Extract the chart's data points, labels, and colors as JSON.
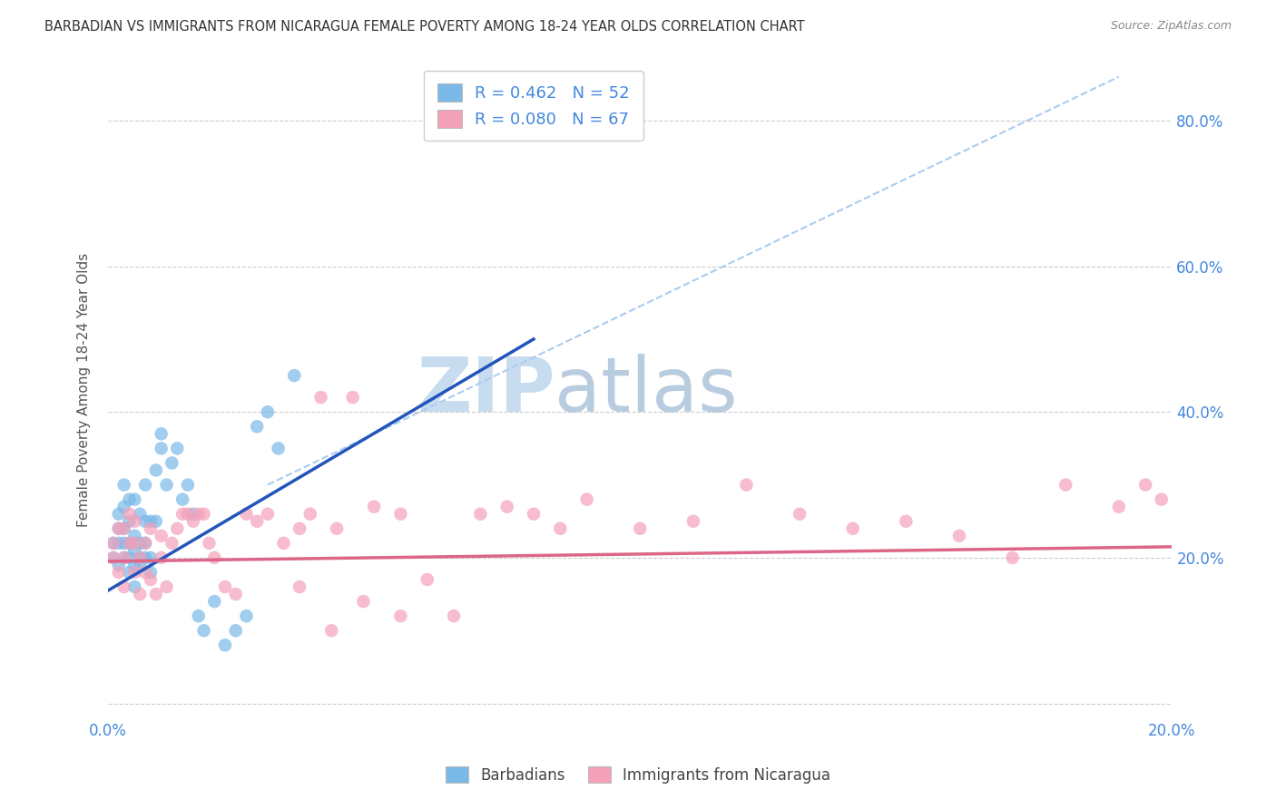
{
  "title": "BARBADIAN VS IMMIGRANTS FROM NICARAGUA FEMALE POVERTY AMONG 18-24 YEAR OLDS CORRELATION CHART",
  "source": "Source: ZipAtlas.com",
  "ylabel": "Female Poverty Among 18-24 Year Olds",
  "xlim": [
    0.0,
    0.2
  ],
  "ylim": [
    -0.02,
    0.88
  ],
  "legend1_R": "0.462",
  "legend1_N": "52",
  "legend2_R": "0.080",
  "legend2_N": "67",
  "color_barbadian": "#7ab8e8",
  "color_nicaragua": "#f4a0b8",
  "color_blue_line": "#2255bb",
  "color_pink_line": "#dd6688",
  "color_dashed_line": "#aaccee",
  "watermark_zip": "ZIP",
  "watermark_atlas": "atlas",
  "watermark_color_zip": "#c8dcf0",
  "watermark_color_atlas": "#b8cce0",
  "blue_line_x0": 0.0,
  "blue_line_y0": 0.155,
  "blue_line_x1": 0.08,
  "blue_line_y1": 0.5,
  "pink_line_x0": 0.0,
  "pink_line_y0": 0.195,
  "pink_line_x1": 0.2,
  "pink_line_y1": 0.215,
  "dash_line_x0": 0.03,
  "dash_line_y0": 0.3,
  "dash_line_x1": 0.19,
  "dash_line_y1": 0.86,
  "barbadian_x": [
    0.001,
    0.001,
    0.002,
    0.002,
    0.002,
    0.002,
    0.003,
    0.003,
    0.003,
    0.003,
    0.003,
    0.004,
    0.004,
    0.004,
    0.004,
    0.004,
    0.005,
    0.005,
    0.005,
    0.005,
    0.005,
    0.006,
    0.006,
    0.006,
    0.006,
    0.007,
    0.007,
    0.007,
    0.007,
    0.008,
    0.008,
    0.008,
    0.009,
    0.009,
    0.01,
    0.01,
    0.011,
    0.012,
    0.013,
    0.014,
    0.015,
    0.016,
    0.017,
    0.018,
    0.02,
    0.022,
    0.024,
    0.026,
    0.028,
    0.03,
    0.032,
    0.035
  ],
  "barbadian_y": [
    0.2,
    0.22,
    0.19,
    0.22,
    0.24,
    0.26,
    0.2,
    0.22,
    0.24,
    0.27,
    0.3,
    0.18,
    0.2,
    0.22,
    0.25,
    0.28,
    0.16,
    0.19,
    0.21,
    0.23,
    0.28,
    0.19,
    0.2,
    0.22,
    0.26,
    0.2,
    0.22,
    0.25,
    0.3,
    0.18,
    0.2,
    0.25,
    0.25,
    0.32,
    0.35,
    0.37,
    0.3,
    0.33,
    0.35,
    0.28,
    0.3,
    0.26,
    0.12,
    0.1,
    0.14,
    0.08,
    0.1,
    0.12,
    0.38,
    0.4,
    0.35,
    0.45
  ],
  "nicaragua_x": [
    0.001,
    0.001,
    0.002,
    0.002,
    0.003,
    0.003,
    0.003,
    0.004,
    0.004,
    0.005,
    0.005,
    0.005,
    0.006,
    0.006,
    0.007,
    0.007,
    0.008,
    0.008,
    0.009,
    0.01,
    0.01,
    0.011,
    0.012,
    0.013,
    0.014,
    0.015,
    0.016,
    0.017,
    0.018,
    0.019,
    0.02,
    0.022,
    0.024,
    0.026,
    0.028,
    0.03,
    0.033,
    0.036,
    0.038,
    0.04,
    0.043,
    0.046,
    0.05,
    0.055,
    0.06,
    0.065,
    0.07,
    0.075,
    0.08,
    0.085,
    0.09,
    0.1,
    0.11,
    0.12,
    0.13,
    0.14,
    0.15,
    0.16,
    0.17,
    0.18,
    0.19,
    0.195,
    0.198,
    0.036,
    0.042,
    0.048,
    0.055
  ],
  "nicaragua_y": [
    0.2,
    0.22,
    0.18,
    0.24,
    0.16,
    0.2,
    0.24,
    0.22,
    0.26,
    0.18,
    0.22,
    0.25,
    0.15,
    0.2,
    0.18,
    0.22,
    0.17,
    0.24,
    0.15,
    0.2,
    0.23,
    0.16,
    0.22,
    0.24,
    0.26,
    0.26,
    0.25,
    0.26,
    0.26,
    0.22,
    0.2,
    0.16,
    0.15,
    0.26,
    0.25,
    0.26,
    0.22,
    0.24,
    0.26,
    0.42,
    0.24,
    0.42,
    0.27,
    0.26,
    0.17,
    0.12,
    0.26,
    0.27,
    0.26,
    0.24,
    0.28,
    0.24,
    0.25,
    0.3,
    0.26,
    0.24,
    0.25,
    0.23,
    0.2,
    0.3,
    0.27,
    0.3,
    0.28,
    0.16,
    0.1,
    0.14,
    0.12
  ]
}
